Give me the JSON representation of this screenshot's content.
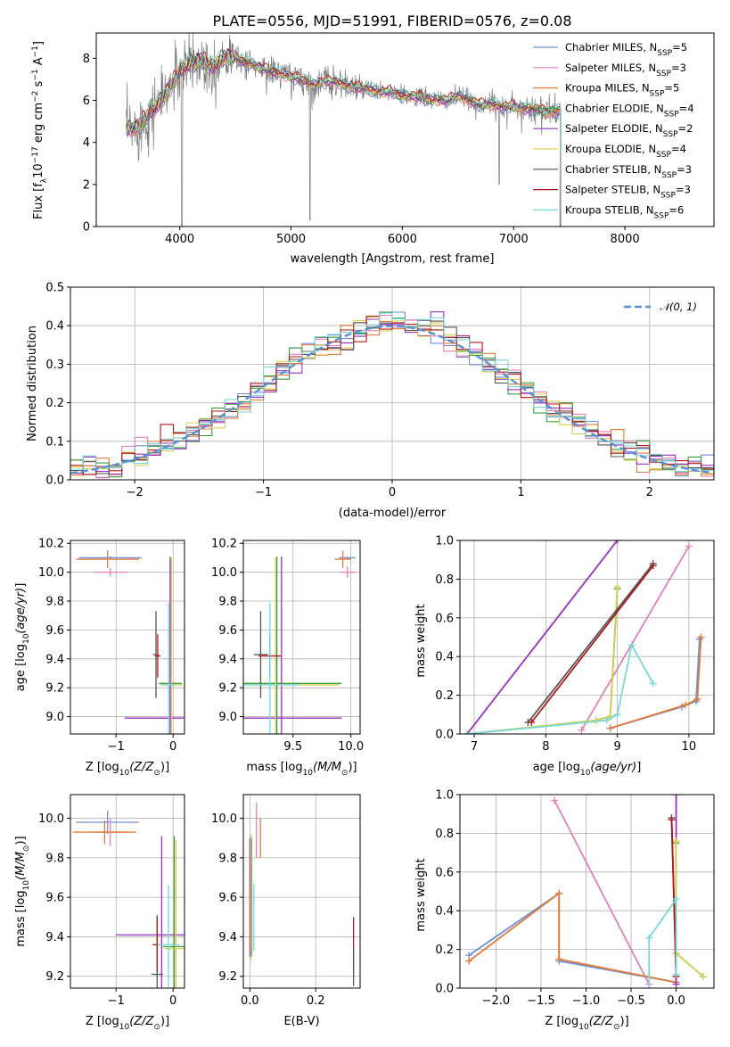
{
  "title": "PLATE=0556, MJD=51991, FIBERID=0576, z=0.08",
  "colors": {
    "c_miles": "#6d8fd8",
    "s_miles": "#e57fb4",
    "k_miles": "#e07b39",
    "c_elodie": "#3a9e3a",
    "s_elodie": "#9b30c0",
    "k_elodie": "#d8d050",
    "c_stelib": "#555555",
    "s_stelib": "#b01818",
    "k_stelib": "#78d8d8",
    "normal": "#5b8fd6"
  },
  "chart_data": [
    {
      "id": "spectrum",
      "type": "line",
      "xlabel": "wavelength [Angstrom, rest frame]",
      "ylabel": "Flux [f",
      "xlim": [
        3250,
        8800
      ],
      "ylim": [
        0,
        9.2
      ],
      "xticks": [
        4000,
        5000,
        6000,
        7000,
        8000
      ],
      "yticks": [
        0,
        2,
        4,
        6,
        8
      ],
      "legend_position": "right",
      "legend": [
        {
          "label": "Chabrier MILES, N",
          "n": "5",
          "color_key": "c_miles"
        },
        {
          "label": "Salpeter MILES, N",
          "n": "3",
          "color_key": "s_miles"
        },
        {
          "label": "Kroupa MILES, N",
          "n": "5",
          "color_key": "k_miles"
        },
        {
          "label": "Chabrier ELODIE, N",
          "n": "4",
          "color_key": "c_elodie"
        },
        {
          "label": "Salpeter ELODIE, N",
          "n": "2",
          "color_key": "s_elodie"
        },
        {
          "label": "Kroupa ELODIE, N",
          "n": "4",
          "color_key": "k_elodie"
        },
        {
          "label": "Chabrier STELIB, N",
          "n": "3",
          "color_key": "c_stelib"
        },
        {
          "label": "Salpeter STELIB, N",
          "n": "3",
          "color_key": "s_stelib"
        },
        {
          "label": "Kroupa STELIB, N",
          "n": "6",
          "color_key": "k_stelib"
        }
      ],
      "model_continuum": [
        [
          3520,
          4.7
        ],
        [
          3600,
          4.6
        ],
        [
          3700,
          5.2
        ],
        [
          3800,
          5.8
        ],
        [
          3900,
          6.5
        ],
        [
          4000,
          7.4
        ],
        [
          4100,
          7.8
        ],
        [
          4200,
          7.9
        ],
        [
          4300,
          7.6
        ],
        [
          4400,
          8.1
        ],
        [
          4500,
          8.0
        ],
        [
          4600,
          7.8
        ],
        [
          4700,
          7.6
        ],
        [
          4800,
          7.4
        ],
        [
          4900,
          7.3
        ],
        [
          5000,
          7.1
        ],
        [
          5100,
          7.0
        ],
        [
          5200,
          6.7
        ],
        [
          5300,
          6.9
        ],
        [
          5400,
          6.9
        ],
        [
          5500,
          6.7
        ],
        [
          5600,
          6.6
        ],
        [
          5700,
          6.5
        ],
        [
          5800,
          6.4
        ],
        [
          5900,
          6.4
        ],
        [
          6000,
          6.2
        ],
        [
          6100,
          6.2
        ],
        [
          6200,
          6.1
        ],
        [
          6300,
          6.0
        ],
        [
          6400,
          6.0
        ],
        [
          6500,
          6.2
        ],
        [
          6600,
          6.0
        ],
        [
          6700,
          5.8
        ],
        [
          6800,
          5.8
        ],
        [
          6900,
          5.7
        ],
        [
          7000,
          5.7
        ],
        [
          7100,
          5.6
        ],
        [
          7200,
          5.6
        ],
        [
          7300,
          5.4
        ],
        [
          7400,
          5.5
        ]
      ]
    },
    {
      "id": "residuals",
      "type": "bar",
      "xlabel": "(data-model)/error",
      "ylabel": "Normed distribution",
      "xlim": [
        -2.5,
        2.5
      ],
      "ylim": [
        0,
        0.5
      ],
      "xticks": [
        -2,
        -1,
        0,
        1,
        2
      ],
      "yticks": [
        0.0,
        0.1,
        0.2,
        0.3,
        0.4,
        0.5
      ],
      "legend_label": "𝒩(0, 1)",
      "legend_position": "top-right",
      "bin_width": 0.1
    },
    {
      "id": "age_vs_Z",
      "type": "scatter",
      "xlabel": "Z [log",
      "ylabel": "age  [log",
      "xlim": [
        -1.8,
        0.2
      ],
      "ylim": [
        8.88,
        10.22
      ],
      "xticks": [
        -1,
        0
      ],
      "yticks": [
        9.0,
        9.2,
        9.4,
        9.6,
        9.8,
        10.0,
        10.2
      ],
      "points": [
        {
          "x": -1.1,
          "y": 10.1,
          "xerr": 0.55,
          "yerr": 0.01,
          "color_key": "c_miles"
        },
        {
          "x": -1.1,
          "y": 10.0,
          "xerr": 0.3,
          "yerr": 0.03,
          "color_key": "s_miles"
        },
        {
          "x": -1.15,
          "y": 10.09,
          "xerr": 0.55,
          "yerr": 0.06,
          "color_key": "k_miles"
        },
        {
          "x": -0.05,
          "y": 9.23,
          "xerr": 0.2,
          "yerr": 0.88,
          "color_key": "c_elodie"
        },
        {
          "x": -0.05,
          "y": 8.99,
          "xerr": 0.8,
          "yerr": 1.1,
          "color_key": "s_elodie"
        },
        {
          "x": -0.03,
          "y": 9.22,
          "xerr": 0.2,
          "yerr": 0.88,
          "color_key": "k_elodie"
        },
        {
          "x": -0.3,
          "y": 9.43,
          "xerr": 0.05,
          "yerr": 0.3,
          "color_key": "c_stelib"
        },
        {
          "x": -0.27,
          "y": 9.42,
          "xerr": 0.05,
          "yerr": 0.15,
          "color_key": "s_stelib"
        },
        {
          "x": -0.08,
          "y": 9.22,
          "xerr": 0.12,
          "yerr": 0.57,
          "color_key": "k_stelib"
        }
      ]
    },
    {
      "id": "age_vs_mass",
      "type": "scatter",
      "xlabel": "mass [log",
      "ylabel": "",
      "xlim": [
        9.07,
        10.08
      ],
      "ylim": [
        8.88,
        10.22
      ],
      "xticks": [
        9.5,
        10.0
      ],
      "yticks": [
        9.0,
        9.2,
        9.4,
        9.6,
        9.8,
        10.0,
        10.2
      ],
      "points": [
        {
          "x": 9.97,
          "y": 10.1,
          "xerr": 0.07,
          "yerr": 0.01,
          "color_key": "c_miles"
        },
        {
          "x": 9.97,
          "y": 10.0,
          "xerr": 0.07,
          "yerr": 0.04,
          "color_key": "s_miles"
        },
        {
          "x": 9.93,
          "y": 10.09,
          "xerr": 0.07,
          "yerr": 0.06,
          "color_key": "k_miles"
        },
        {
          "x": 9.36,
          "y": 9.23,
          "xerr": 0.56,
          "yerr": 0.88,
          "color_key": "c_elodie"
        },
        {
          "x": 9.4,
          "y": 8.99,
          "xerr": 0.52,
          "yerr": 1.12,
          "color_key": "s_elodie"
        },
        {
          "x": 9.35,
          "y": 9.22,
          "xerr": 0.55,
          "yerr": 0.88,
          "color_key": "k_elodie"
        },
        {
          "x": 9.22,
          "y": 9.43,
          "xerr": 0.06,
          "yerr": 0.3,
          "color_key": "c_stelib"
        },
        {
          "x": 9.3,
          "y": 9.42,
          "xerr": 0.1,
          "yerr": 0.15,
          "color_key": "s_stelib"
        },
        {
          "x": 9.3,
          "y": 9.22,
          "xerr": 0.25,
          "yerr": 0.57,
          "color_key": "k_stelib"
        }
      ]
    },
    {
      "id": "weight_vs_age",
      "type": "line",
      "xlabel": "age  [log",
      "ylabel": "mass weight",
      "xlim": [
        6.8,
        10.35
      ],
      "ylim": [
        0,
        1.0
      ],
      "xticks": [
        7,
        8,
        9,
        10
      ],
      "yticks": [
        0.0,
        0.2,
        0.4,
        0.6,
        0.8,
        1.0
      ],
      "series": [
        {
          "color_key": "c_miles",
          "x": [
            8.9,
            9.9,
            10.1,
            10.15
          ],
          "y": [
            0.03,
            0.14,
            0.17,
            0.49
          ]
        },
        {
          "color_key": "s_miles",
          "x": [
            8.5,
            10.0
          ],
          "y": [
            0.02,
            0.97
          ]
        },
        {
          "color_key": "k_miles",
          "x": [
            8.9,
            9.95,
            10.12,
            10.17
          ],
          "y": [
            0.03,
            0.15,
            0.18,
            0.5
          ]
        },
        {
          "color_key": "c_elodie",
          "x": [
            6.9,
            8.7,
            8.9,
            9.0
          ],
          "y": [
            0.0,
            0.07,
            0.09,
            0.75
          ]
        },
        {
          "color_key": "s_elodie",
          "x": [
            6.9,
            9.0
          ],
          "y": [
            0.0,
            1.0
          ]
        },
        {
          "color_key": "k_elodie",
          "x": [
            6.9,
            8.7,
            8.9,
            9.0
          ],
          "y": [
            0.0,
            0.07,
            0.09,
            0.76
          ]
        },
        {
          "color_key": "c_stelib",
          "x": [
            7.75,
            9.5
          ],
          "y": [
            0.06,
            0.88
          ]
        },
        {
          "color_key": "s_stelib",
          "x": [
            7.8,
            9.5
          ],
          "y": [
            0.06,
            0.87
          ]
        },
        {
          "color_key": "k_stelib",
          "x": [
            6.9,
            8.85,
            9.0,
            9.2,
            9.5
          ],
          "y": [
            0.0,
            0.07,
            0.1,
            0.46,
            0.26
          ]
        }
      ]
    },
    {
      "id": "mass_vs_Z",
      "type": "scatter",
      "xlabel": "Z [log",
      "ylabel": "mass [log",
      "xlim": [
        -1.8,
        0.2
      ],
      "ylim": [
        9.14,
        10.12
      ],
      "xticks": [
        -1,
        0
      ],
      "yticks": [
        9.2,
        9.4,
        9.6,
        9.8,
        10.0
      ],
      "points": [
        {
          "x": -1.15,
          "y": 9.98,
          "xerr": 0.55,
          "yerr": 0.06,
          "color_key": "c_miles"
        },
        {
          "x": -1.1,
          "y": 9.93,
          "xerr": 0.3,
          "yerr": 0.07,
          "color_key": "s_miles"
        },
        {
          "x": -1.2,
          "y": 9.93,
          "xerr": 0.55,
          "yerr": 0.06,
          "color_key": "k_miles"
        },
        {
          "x": 0.02,
          "y": 9.35,
          "xerr": 0.2,
          "yerr": 0.56,
          "color_key": "c_elodie"
        },
        {
          "x": -0.2,
          "y": 9.41,
          "xerr": 0.8,
          "yerr": 0.5,
          "color_key": "s_elodie"
        },
        {
          "x": 0.05,
          "y": 9.34,
          "xerr": 0.2,
          "yerr": 0.55,
          "color_key": "k_elodie"
        },
        {
          "x": -0.28,
          "y": 9.21,
          "xerr": 0.1,
          "yerr": 0.3,
          "color_key": "c_stelib"
        },
        {
          "x": -0.28,
          "y": 9.36,
          "xerr": 0.08,
          "yerr": 0.14,
          "color_key": "s_stelib"
        },
        {
          "x": -0.08,
          "y": 9.36,
          "xerr": 0.2,
          "yerr": 0.3,
          "color_key": "k_stelib"
        }
      ]
    },
    {
      "id": "mass_vs_ebv",
      "type": "scatter",
      "xlabel": "E(B-V)",
      "ylabel": "",
      "xlim": [
        -0.02,
        0.335
      ],
      "ylim": [
        9.14,
        10.12
      ],
      "xticks": [
        0.0,
        0.2
      ],
      "yticks": [
        9.2,
        9.4,
        9.6,
        9.8,
        10.0
      ],
      "points": [
        {
          "x": 0.005,
          "y": 9.6,
          "xerr": 0,
          "yerr": 0.3,
          "color_key": "c_elodie"
        },
        {
          "x": 0.0,
          "y": 9.6,
          "xerr": 0,
          "yerr": 0.3,
          "color_key": "s_elodie"
        },
        {
          "x": 0.003,
          "y": 9.6,
          "xerr": 0,
          "yerr": 0.32,
          "color_key": "k_elodie"
        },
        {
          "x": 0.02,
          "y": 9.94,
          "xerr": 0,
          "yerr": 0.14,
          "color_key": "s_miles"
        },
        {
          "x": 0.032,
          "y": 9.9,
          "xerr": 0,
          "yerr": 0.1,
          "color_key": "k_miles"
        },
        {
          "x": 0.012,
          "y": 9.5,
          "xerr": 0,
          "yerr": 0.17,
          "color_key": "k_stelib"
        },
        {
          "x": 0.315,
          "y": 9.35,
          "xerr": 0,
          "yerr": 0.15,
          "color_key": "s_stelib"
        },
        {
          "x": 0.315,
          "y": 9.25,
          "xerr": 0,
          "yerr": 0.1,
          "color_key": "c_stelib"
        }
      ]
    },
    {
      "id": "weight_vs_Z",
      "type": "line",
      "xlabel": "Z [log",
      "ylabel": "mass weight",
      "xlim": [
        -2.4,
        0.42
      ],
      "ylim": [
        0,
        1.0
      ],
      "xticks": [
        -2.0,
        -1.5,
        -1.0,
        -0.5,
        0.0
      ],
      "yticks": [
        0.0,
        0.2,
        0.4,
        0.6,
        0.8,
        1.0
      ],
      "series": [
        {
          "color_key": "c_miles",
          "x": [
            -2.3,
            -1.3,
            -1.3,
            0.0
          ],
          "y": [
            0.17,
            0.49,
            0.14,
            0.03
          ]
        },
        {
          "color_key": "s_miles",
          "x": [
            -1.35,
            -0.3
          ],
          "y": [
            0.97,
            0.02
          ]
        },
        {
          "color_key": "k_miles",
          "x": [
            -2.3,
            -1.3,
            -1.3,
            0.0
          ],
          "y": [
            0.14,
            0.49,
            0.15,
            0.03
          ]
        },
        {
          "color_key": "c_elodie",
          "x": [
            0.0,
            0.0,
            0.3
          ],
          "y": [
            0.75,
            0.18,
            0.06
          ]
        },
        {
          "color_key": "s_elodie",
          "x": [
            0.0,
            0.0
          ],
          "y": [
            1.0,
            0.02
          ]
        },
        {
          "color_key": "k_elodie",
          "x": [
            0.0,
            0.0,
            0.3
          ],
          "y": [
            0.76,
            0.18,
            0.06
          ]
        },
        {
          "color_key": "c_stelib",
          "x": [
            -0.05,
            0.0
          ],
          "y": [
            0.88,
            0.06
          ]
        },
        {
          "color_key": "s_stelib",
          "x": [
            -0.05,
            0.0
          ],
          "y": [
            0.87,
            0.06
          ]
        },
        {
          "color_key": "k_stelib",
          "x": [
            -0.3,
            -0.3,
            0.0,
            0.0
          ],
          "y": [
            0.0,
            0.26,
            0.46,
            0.07
          ]
        }
      ]
    }
  ]
}
